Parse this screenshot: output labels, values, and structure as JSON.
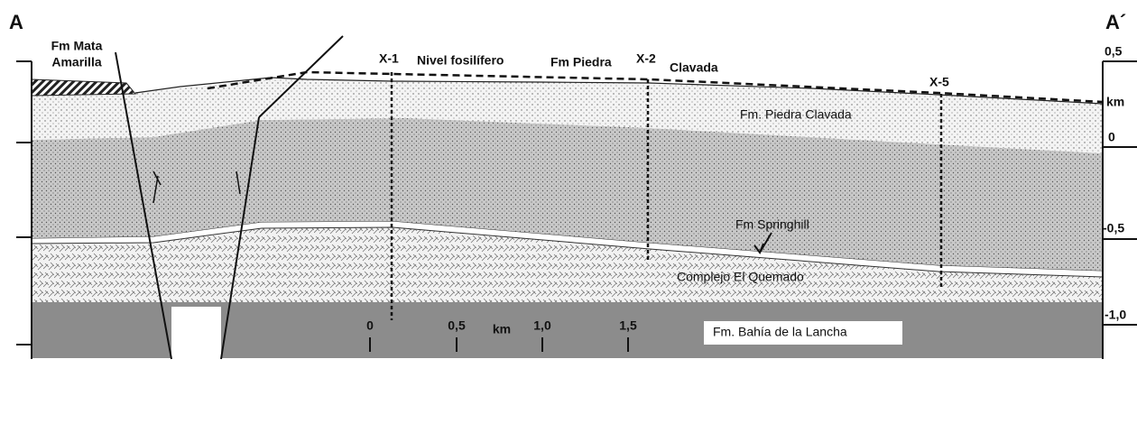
{
  "section": {
    "start": "A",
    "end": "A´"
  },
  "labels": {
    "mata_amarilla": [
      "Fm Mata",
      "Amarilla"
    ],
    "nivel": "Nivel fosilífero",
    "fm_piedra": [
      "Fm Piedra",
      "Clavada"
    ],
    "piedra_clavada": "Fm. Piedra Clavada",
    "springhill": "Fm Springhill",
    "quemado": "Complejo El Quemado",
    "bahia": "Fm. Bahía de la Lancha"
  },
  "wells": [
    "X-1",
    "X-2",
    "X-5"
  ],
  "depth_scale": [
    "0,5",
    "km",
    "0",
    "-0,5",
    "-1,0"
  ],
  "scale_bar": [
    "0",
    "0,5",
    "km",
    "1,0",
    "1,5"
  ]
}
